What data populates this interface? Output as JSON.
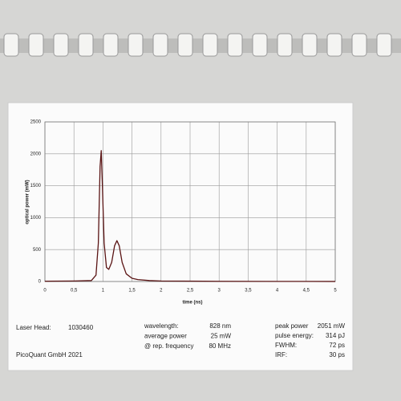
{
  "chart_data": {
    "type": "line",
    "x_label": "time (ns)",
    "y_label": "optical power (mW)",
    "x": [
      0,
      0.5,
      0.8,
      0.88,
      0.92,
      0.95,
      0.97,
      0.99,
      1.02,
      1.06,
      1.1,
      1.15,
      1.2,
      1.24,
      1.28,
      1.33,
      1.4,
      1.5,
      1.6,
      1.8,
      2,
      3,
      4,
      5
    ],
    "series": [
      {
        "color": "#5a1414",
        "values": [
          5,
          8,
          15,
          100,
          600,
          1800,
          2050,
          1500,
          600,
          220,
          190,
          300,
          560,
          640,
          560,
          300,
          120,
          50,
          30,
          15,
          8,
          3,
          2,
          1
        ]
      }
    ],
    "xlim": [
      0,
      5
    ],
    "xticks": [
      0,
      {
        "value": 0.5,
        "label": "0,5"
      },
      1,
      {
        "value": 1.5,
        "label": "1,5"
      },
      2,
      {
        "value": 2.5,
        "label": "2,5"
      },
      3,
      {
        "value": 3.5,
        "label": "3,5"
      },
      4,
      {
        "value": 4.5,
        "label": "4,5"
      },
      5
    ],
    "ylim": [
      0,
      2500
    ],
    "yticks": [
      0,
      500,
      1000,
      1500,
      2000,
      2500
    ],
    "grid": true
  },
  "info": {
    "laser_head_label": "Laser Head:",
    "laser_head": "1030460",
    "company": "PicoQuant GmbH",
    "year": "2021",
    "left_rows": [
      [
        "wavelength:",
        "828 nm"
      ],
      [
        "average power",
        "25 mW"
      ],
      [
        "@ rep. frequency",
        "80 MHz"
      ]
    ],
    "right_rows": [
      [
        "peak power",
        "2051 mW"
      ],
      [
        "pulse energy:",
        "314 pJ"
      ],
      [
        "FWHM:",
        "72 ps"
      ],
      [
        "IRF:",
        "30 ps"
      ]
    ]
  }
}
